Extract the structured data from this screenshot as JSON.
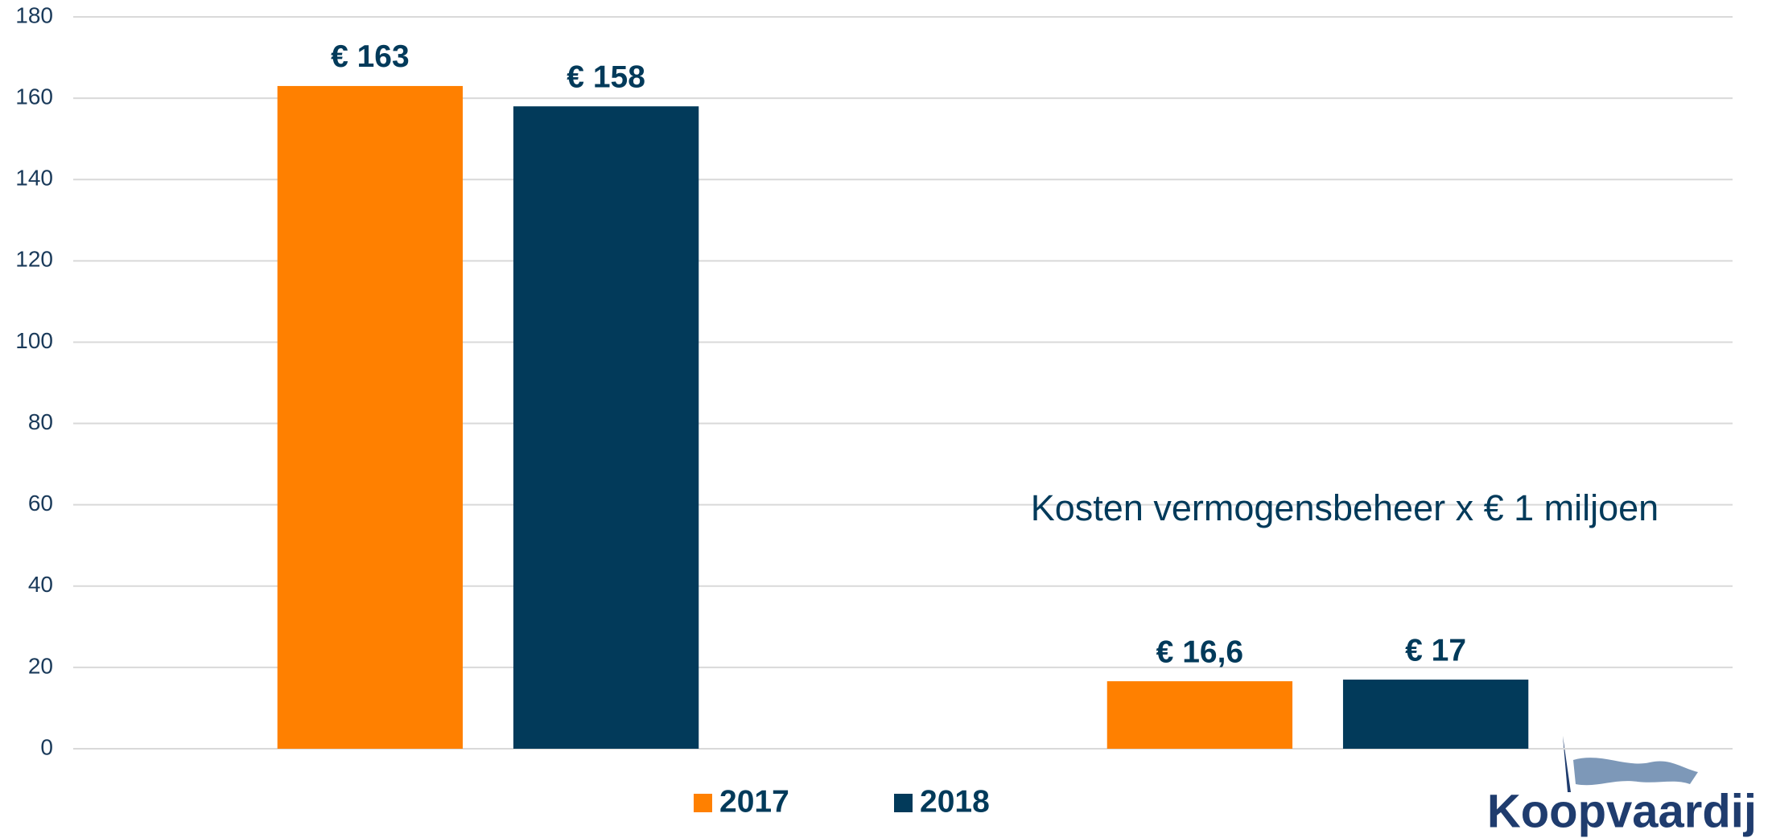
{
  "chart_data": {
    "type": "bar",
    "categories": [
      null,
      null
    ],
    "series": [
      {
        "name": "2017",
        "color": "#ff8000",
        "values": [
          163,
          16.6
        ],
        "value_labels": [
          "€ 163",
          "€ 16,6"
        ]
      },
      {
        "name": "2018",
        "color": "#023a5a",
        "values": [
          158,
          17
        ],
        "value_labels": [
          "€ 158",
          "€ 17"
        ]
      }
    ],
    "ylim": [
      0,
      180
    ],
    "yticks": [
      0,
      20,
      40,
      60,
      80,
      100,
      120,
      140,
      160,
      180
    ],
    "grid": true,
    "legend": "bottom",
    "annotation": "Kosten vermogensbeheer x € 1 miljoen"
  },
  "logo": "Koopvaardij"
}
